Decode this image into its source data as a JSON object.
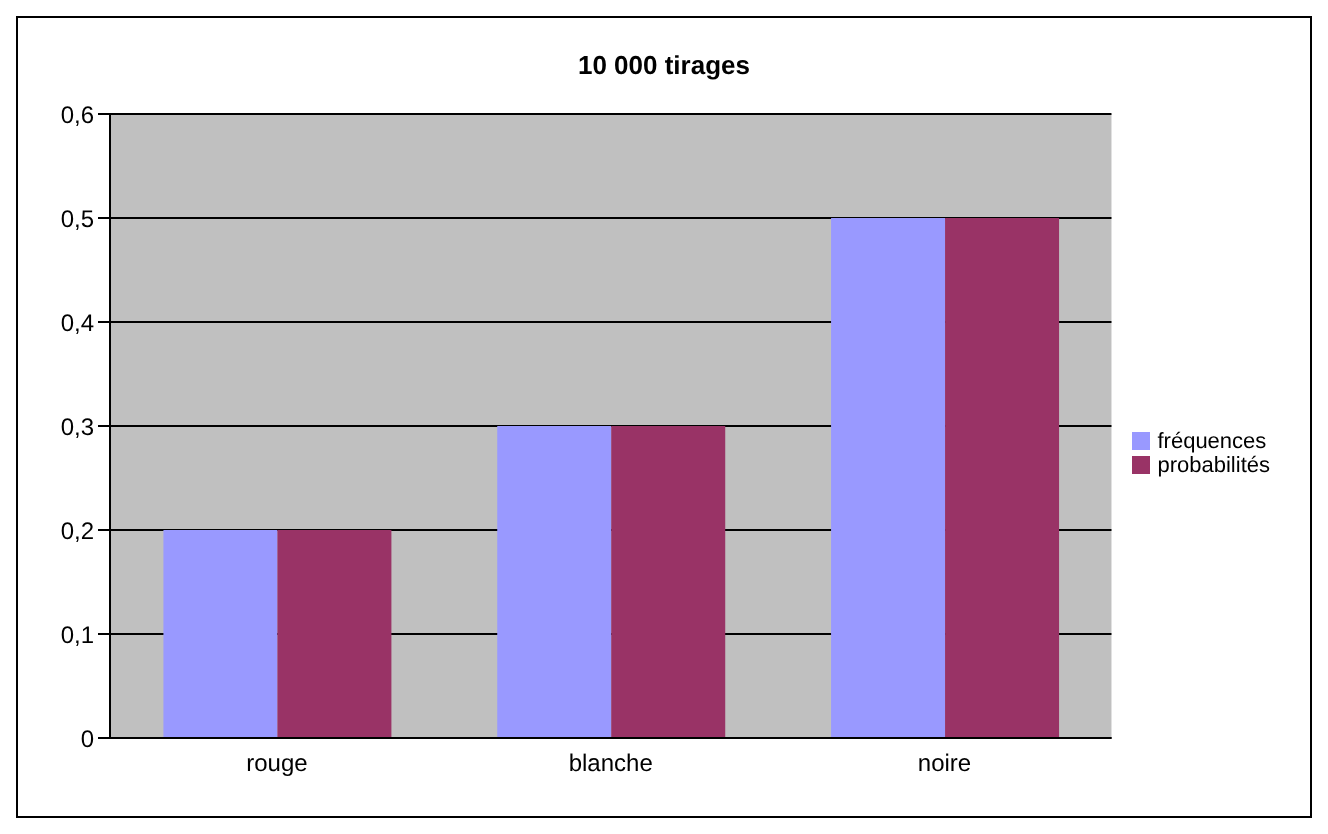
{
  "chart_data": {
    "type": "bar",
    "title": "10 000 tirages",
    "categories": [
      "rouge",
      "blanche",
      "noire"
    ],
    "series": [
      {
        "name": "fréquences",
        "color": "#9999ff",
        "values": [
          0.2,
          0.3,
          0.5
        ]
      },
      {
        "name": "probabilités",
        "color": "#993366",
        "values": [
          0.2,
          0.3,
          0.5
        ]
      }
    ],
    "ylim": [
      0,
      0.6
    ],
    "yticks": [
      {
        "value": 0,
        "label": "0"
      },
      {
        "value": 0.1,
        "label": "0,1"
      },
      {
        "value": 0.2,
        "label": "0,2"
      },
      {
        "value": 0.3,
        "label": "0,3"
      },
      {
        "value": 0.4,
        "label": "0,4"
      },
      {
        "value": 0.5,
        "label": "0,5"
      },
      {
        "value": 0.6,
        "label": "0,6"
      }
    ],
    "grid": "y",
    "legend": "right"
  }
}
